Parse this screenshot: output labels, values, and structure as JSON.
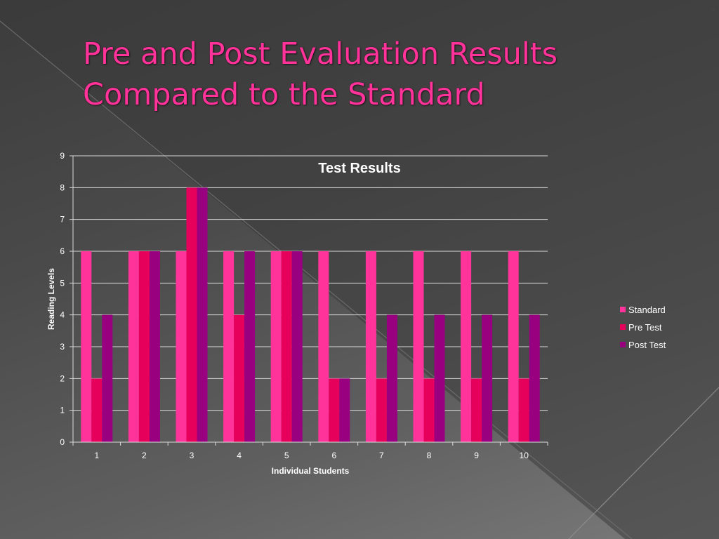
{
  "slide": {
    "title_line1": "Pre and Post Evaluation Results",
    "title_line2": "Compared to the Standard",
    "bullet": "➔"
  },
  "chart_data": {
    "type": "bar",
    "title": "Test Results",
    "xlabel": "Individual Students",
    "ylabel": "Reading Levels",
    "categories": [
      "1",
      "2",
      "3",
      "4",
      "5",
      "6",
      "7",
      "8",
      "9",
      "10"
    ],
    "ylim": [
      0,
      9
    ],
    "yticks": [
      0,
      1,
      2,
      3,
      4,
      5,
      6,
      7,
      8,
      9
    ],
    "grid": true,
    "legend_position": "right",
    "series": [
      {
        "name": "Standard",
        "color": "#ff3399",
        "values": [
          6,
          6,
          6,
          6,
          6,
          6,
          6,
          6,
          6,
          6
        ]
      },
      {
        "name": "Pre Test",
        "color": "#e6005c",
        "values": [
          2,
          6,
          8,
          4,
          6,
          2,
          2,
          2,
          2,
          2
        ]
      },
      {
        "name": "Post Test",
        "color": "#990080",
        "values": [
          4,
          6,
          8,
          6,
          6,
          2,
          4,
          4,
          4,
          4
        ]
      }
    ]
  }
}
